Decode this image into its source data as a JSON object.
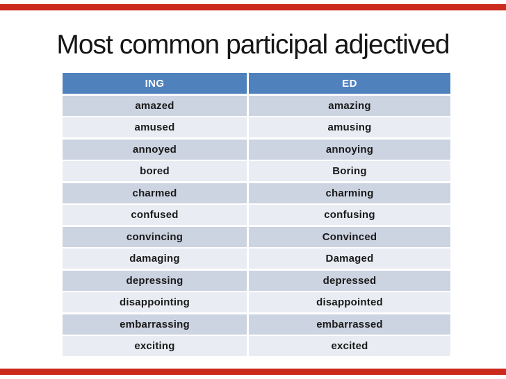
{
  "slide": {
    "title": "Most common participal adjectived"
  },
  "colors": {
    "accent_bar": "#cb2a1d",
    "table_header_bg": "#4f81bd",
    "table_header_text": "#ffffff",
    "row_band_dark": "#ccd3e1",
    "row_band_light": "#e9ecf3",
    "cell_text": "#1a1a1a"
  },
  "table": {
    "headers": [
      "ING",
      "ED"
    ],
    "rows": [
      [
        "amazed",
        "amazing"
      ],
      [
        "amused",
        "amusing"
      ],
      [
        "annoyed",
        "annoying"
      ],
      [
        "bored",
        "Boring"
      ],
      [
        "charmed",
        "charming"
      ],
      [
        "confused",
        "confusing"
      ],
      [
        "convincing",
        "Convinced"
      ],
      [
        "damaging",
        "Damaged"
      ],
      [
        "depressing",
        "depressed"
      ],
      [
        "disappointing",
        "disappointed"
      ],
      [
        "embarrassing",
        "embarrassed"
      ],
      [
        "exciting",
        "excited"
      ]
    ]
  }
}
